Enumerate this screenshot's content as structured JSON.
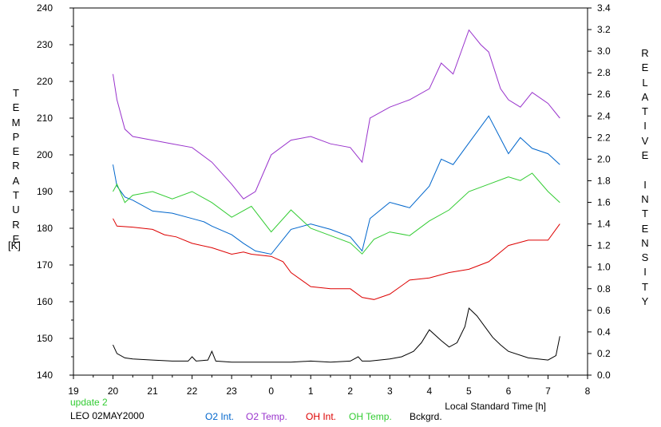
{
  "chart_data": {
    "type": "line",
    "xlabel": "Local Standard Time [h]",
    "ylabel_left": "TEMPERATURE",
    "ylabel_left_unit": "[K]",
    "ylabel_right": "RELATIVE INTENSITY",
    "x_ticks": [
      "19",
      "20",
      "21",
      "22",
      "23",
      "0",
      "1",
      "2",
      "3",
      "4",
      "5",
      "6",
      "7",
      "8"
    ],
    "x_range_hours": [
      19,
      32
    ],
    "y_left_range": [
      140,
      240
    ],
    "y_left_ticks": [
      "140",
      "150",
      "160",
      "170",
      "180",
      "190",
      "200",
      "210",
      "220",
      "230",
      "240"
    ],
    "y_right_range": [
      0.0,
      3.4
    ],
    "y_right_ticks": [
      "0.0",
      "0.2",
      "0.4",
      "0.6",
      "0.8",
      "1.0",
      "1.2",
      "1.4",
      "1.6",
      "1.8",
      "2.0",
      "2.2",
      "2.4",
      "2.6",
      "2.8",
      "3.0",
      "3.2",
      "3.4"
    ],
    "axis_note": "x in hours after 19:00 local time continues past midnight (0 = 24, 7 = 31)",
    "series": [
      {
        "name": "O2 Int.",
        "color": "#0066cc",
        "axis": "right",
        "x": [
          20.0,
          20.1,
          20.3,
          20.5,
          21.0,
          21.5,
          22.0,
          22.3,
          22.5,
          23.0,
          23.3,
          23.6,
          24.0,
          24.5,
          25.0,
          25.5,
          26.0,
          26.3,
          26.5,
          27.0,
          27.5,
          28.0,
          28.3,
          28.6,
          29.0,
          29.5,
          30.0,
          30.3,
          30.6,
          31.0,
          31.3
        ],
        "y": [
          1.95,
          1.75,
          1.65,
          1.62,
          1.52,
          1.5,
          1.45,
          1.42,
          1.38,
          1.3,
          1.22,
          1.15,
          1.12,
          1.35,
          1.4,
          1.35,
          1.28,
          1.15,
          1.45,
          1.6,
          1.55,
          1.75,
          2.0,
          1.95,
          2.15,
          2.4,
          2.05,
          2.2,
          2.1,
          2.05,
          1.95
        ]
      },
      {
        "name": "O2 Temp.",
        "color": "#9933cc",
        "axis": "left",
        "x": [
          20.0,
          20.1,
          20.3,
          20.5,
          21.0,
          21.5,
          22.0,
          22.5,
          23.0,
          23.3,
          23.6,
          24.0,
          24.5,
          25.0,
          25.5,
          26.0,
          26.3,
          26.5,
          27.0,
          27.5,
          28.0,
          28.3,
          28.6,
          29.0,
          29.3,
          29.5,
          29.8,
          30.0,
          30.3,
          30.6,
          31.0,
          31.3
        ],
        "y": [
          222,
          215,
          207,
          205,
          204,
          203,
          202,
          198,
          192,
          188,
          190,
          200,
          204,
          205,
          203,
          202,
          198,
          210,
          213,
          215,
          218,
          225,
          222,
          234,
          230,
          228,
          218,
          215,
          213,
          217,
          214,
          210
        ]
      },
      {
        "name": "OH Int.",
        "color": "#dd0000",
        "axis": "right",
        "x": [
          20.0,
          20.1,
          20.5,
          21.0,
          21.3,
          21.6,
          22.0,
          22.5,
          23.0,
          23.3,
          23.5,
          24.0,
          24.3,
          24.5,
          25.0,
          25.5,
          26.0,
          26.3,
          26.6,
          27.0,
          27.5,
          28.0,
          28.5,
          29.0,
          29.5,
          30.0,
          30.5,
          31.0,
          31.3
        ],
        "y": [
          1.45,
          1.38,
          1.37,
          1.35,
          1.3,
          1.28,
          1.22,
          1.18,
          1.12,
          1.14,
          1.12,
          1.1,
          1.05,
          0.95,
          0.82,
          0.8,
          0.8,
          0.72,
          0.7,
          0.75,
          0.88,
          0.9,
          0.95,
          0.98,
          1.05,
          1.2,
          1.25,
          1.25,
          1.4
        ]
      },
      {
        "name": "OH Temp.",
        "color": "#33cc33",
        "axis": "left",
        "x": [
          20.0,
          20.1,
          20.3,
          20.5,
          21.0,
          21.5,
          22.0,
          22.5,
          23.0,
          23.5,
          24.0,
          24.5,
          25.0,
          25.5,
          26.0,
          26.3,
          26.6,
          27.0,
          27.5,
          28.0,
          28.5,
          29.0,
          29.5,
          30.0,
          30.3,
          30.6,
          31.0,
          31.3
        ],
        "y": [
          190,
          192,
          187,
          189,
          190,
          188,
          190,
          187,
          183,
          186,
          179,
          185,
          180,
          178,
          176,
          173,
          177,
          179,
          178,
          182,
          185,
          190,
          192,
          194,
          193,
          195,
          190,
          187
        ]
      },
      {
        "name": "Bckgrd.",
        "color": "#000000",
        "axis": "right",
        "x": [
          20.0,
          20.1,
          20.3,
          20.5,
          21.0,
          21.5,
          21.9,
          22.0,
          22.1,
          22.4,
          22.5,
          22.6,
          23.0,
          23.5,
          24.0,
          24.5,
          25.0,
          25.5,
          26.0,
          26.2,
          26.3,
          26.5,
          27.0,
          27.3,
          27.6,
          27.8,
          28.0,
          28.3,
          28.5,
          28.7,
          28.9,
          29.0,
          29.2,
          29.4,
          29.6,
          29.8,
          30.0,
          30.5,
          31.0,
          31.2,
          31.3
        ],
        "y": [
          0.28,
          0.2,
          0.16,
          0.15,
          0.14,
          0.13,
          0.13,
          0.17,
          0.13,
          0.14,
          0.22,
          0.13,
          0.12,
          0.12,
          0.12,
          0.12,
          0.13,
          0.12,
          0.13,
          0.17,
          0.13,
          0.13,
          0.15,
          0.17,
          0.22,
          0.3,
          0.42,
          0.32,
          0.26,
          0.3,
          0.45,
          0.62,
          0.55,
          0.45,
          0.35,
          0.28,
          0.22,
          0.16,
          0.14,
          0.18,
          0.36
        ]
      }
    ],
    "legend_placement": "bottom",
    "grid": false,
    "annotations": [
      "update 2",
      "LEO 02MAY2000"
    ]
  },
  "footer": {
    "update_label": "update 2",
    "update_color": "#33cc33",
    "station_label": "LEO 02MAY2000"
  }
}
